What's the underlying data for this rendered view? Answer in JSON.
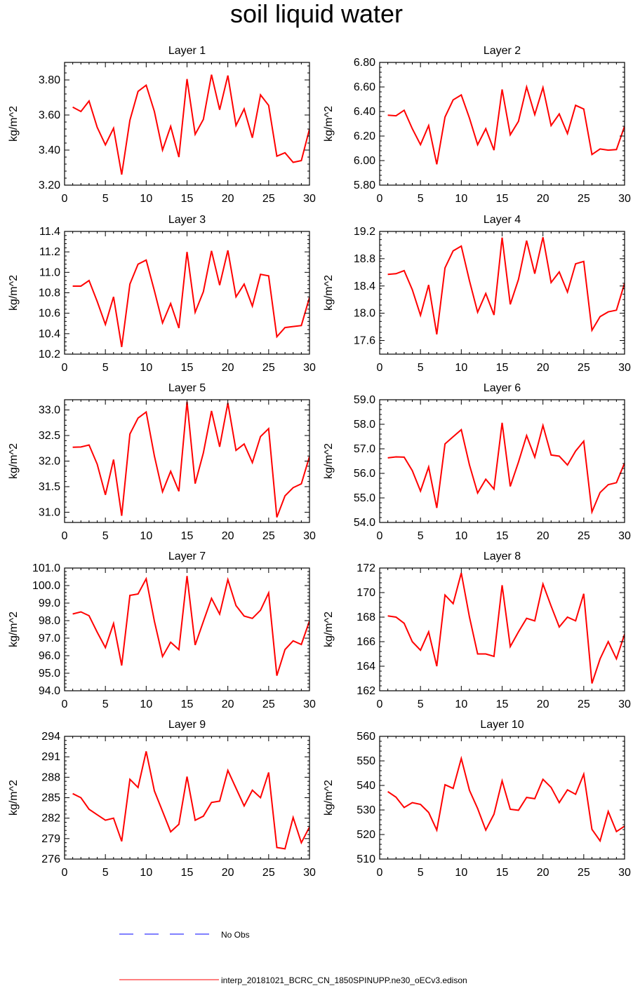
{
  "title": "soil liquid water",
  "colors": {
    "series": "#ff0000",
    "obs": "#0000ff",
    "axis": "#000000"
  },
  "legend": {
    "obs_label": "No Obs",
    "model_label": "interp_20181021_BCRC_CN_1850SPINUPP.ne30_oECv3.edison"
  },
  "chart_data": [
    {
      "type": "line",
      "title": "Layer 1",
      "ylabel": "kg/m^2",
      "xlim": [
        0,
        30
      ],
      "ylim": [
        3.2,
        3.9
      ],
      "xticks": [
        0,
        5,
        10,
        15,
        20,
        25,
        30
      ],
      "yticks": [
        "3.20",
        "3.40",
        "3.60",
        "3.80"
      ],
      "x": [
        1,
        2,
        3,
        4,
        5,
        6,
        7,
        8,
        9,
        10,
        11,
        12,
        13,
        14,
        15,
        16,
        17,
        18,
        19,
        20,
        21,
        22,
        23,
        24,
        25,
        26,
        27,
        28,
        29,
        30
      ],
      "series": [
        {
          "values": [
            3.645,
            3.62,
            3.68,
            3.53,
            3.43,
            3.525,
            3.26,
            3.57,
            3.735,
            3.77,
            3.62,
            3.4,
            3.535,
            3.36,
            3.805,
            3.49,
            3.575,
            3.83,
            3.63,
            3.825,
            3.54,
            3.635,
            3.47,
            3.715,
            3.655,
            3.365,
            3.385,
            3.33,
            3.34,
            3.52
          ]
        }
      ]
    },
    {
      "type": "line",
      "title": "Layer 2",
      "ylabel": "kg/m^2",
      "xlim": [
        0,
        30
      ],
      "ylim": [
        5.8,
        6.8
      ],
      "xticks": [
        0,
        5,
        10,
        15,
        20,
        25,
        30
      ],
      "yticks": [
        "5.80",
        "6.00",
        "6.20",
        "6.40",
        "6.60",
        "6.80"
      ],
      "x": [
        1,
        2,
        3,
        4,
        5,
        6,
        7,
        8,
        9,
        10,
        11,
        12,
        13,
        14,
        15,
        16,
        17,
        18,
        19,
        20,
        21,
        22,
        23,
        24,
        25,
        26,
        27,
        28,
        29,
        30
      ],
      "series": [
        {
          "values": [
            6.37,
            6.365,
            6.41,
            6.26,
            6.13,
            6.285,
            5.97,
            6.355,
            6.495,
            6.535,
            6.345,
            6.13,
            6.26,
            6.085,
            6.58,
            6.21,
            6.32,
            6.6,
            6.375,
            6.595,
            6.285,
            6.38,
            6.22,
            6.45,
            6.42,
            6.05,
            6.095,
            6.085,
            6.09,
            6.28
          ]
        }
      ]
    },
    {
      "type": "line",
      "title": "Layer 3",
      "ylabel": "kg/m^2",
      "xlim": [
        0,
        30
      ],
      "ylim": [
        10.2,
        11.4
      ],
      "xticks": [
        0,
        5,
        10,
        15,
        20,
        25,
        30
      ],
      "yticks": [
        "10.2",
        "10.4",
        "10.6",
        "10.8",
        "11.0",
        "11.2",
        "11.4"
      ],
      "x": [
        1,
        2,
        3,
        4,
        5,
        6,
        7,
        8,
        9,
        10,
        11,
        12,
        13,
        14,
        15,
        16,
        17,
        18,
        19,
        20,
        21,
        22,
        23,
        24,
        25,
        26,
        27,
        28,
        29,
        30
      ],
      "series": [
        {
          "values": [
            10.865,
            10.865,
            10.92,
            10.715,
            10.49,
            10.76,
            10.27,
            10.885,
            11.08,
            11.12,
            10.82,
            10.505,
            10.695,
            10.455,
            11.2,
            10.61,
            10.81,
            11.21,
            10.875,
            11.215,
            10.76,
            10.885,
            10.67,
            10.98,
            10.965,
            10.37,
            10.46,
            10.47,
            10.48,
            10.755
          ]
        }
      ]
    },
    {
      "type": "line",
      "title": "Layer 4",
      "ylabel": "kg/m^2",
      "xlim": [
        0,
        30
      ],
      "ylim": [
        17.4,
        19.2
      ],
      "xticks": [
        0,
        5,
        10,
        15,
        20,
        25,
        30
      ],
      "yticks": [
        "17.6",
        "18.0",
        "18.4",
        "18.8",
        "19.2"
      ],
      "x": [
        1,
        2,
        3,
        4,
        5,
        6,
        7,
        8,
        9,
        10,
        11,
        12,
        13,
        14,
        15,
        16,
        17,
        18,
        19,
        20,
        21,
        22,
        23,
        24,
        25,
        26,
        27,
        28,
        29,
        30
      ],
      "series": [
        {
          "values": [
            18.57,
            18.58,
            18.625,
            18.345,
            17.97,
            18.415,
            17.69,
            18.665,
            18.915,
            18.985,
            18.475,
            18.015,
            18.29,
            17.975,
            19.11,
            18.13,
            18.495,
            19.065,
            18.58,
            19.115,
            18.45,
            18.605,
            18.31,
            18.725,
            18.76,
            17.75,
            17.95,
            18.02,
            18.045,
            18.44
          ]
        }
      ]
    },
    {
      "type": "line",
      "title": "Layer 5",
      "ylabel": "kg/m^2",
      "xlim": [
        0,
        30
      ],
      "ylim": [
        30.8,
        33.2
      ],
      "xticks": [
        0,
        5,
        10,
        15,
        20,
        25,
        30
      ],
      "yticks": [
        "31.0",
        "31.5",
        "32.0",
        "32.5",
        "33.0"
      ],
      "x": [
        1,
        2,
        3,
        4,
        5,
        6,
        7,
        8,
        9,
        10,
        11,
        12,
        13,
        14,
        15,
        16,
        17,
        18,
        19,
        20,
        21,
        22,
        23,
        24,
        25,
        26,
        27,
        28,
        29,
        30
      ],
      "series": [
        {
          "values": [
            32.27,
            32.275,
            32.315,
            31.94,
            31.34,
            32.03,
            30.93,
            32.53,
            32.84,
            32.96,
            32.1,
            31.4,
            31.8,
            31.41,
            33.16,
            31.56,
            32.16,
            32.98,
            32.28,
            33.135,
            32.21,
            32.335,
            31.97,
            32.48,
            32.635,
            30.9,
            31.32,
            31.48,
            31.555,
            32.09
          ]
        }
      ]
    },
    {
      "type": "line",
      "title": "Layer 6",
      "ylabel": "kg/m^2",
      "xlim": [
        0,
        30
      ],
      "ylim": [
        54.0,
        59.0
      ],
      "xticks": [
        0,
        5,
        10,
        15,
        20,
        25,
        30
      ],
      "yticks": [
        "54.0",
        "55.0",
        "56.0",
        "57.0",
        "58.0",
        "59.0"
      ],
      "x": [
        1,
        2,
        3,
        4,
        5,
        6,
        7,
        8,
        9,
        10,
        11,
        12,
        13,
        14,
        15,
        16,
        17,
        18,
        19,
        20,
        21,
        22,
        23,
        24,
        25,
        26,
        27,
        28,
        29,
        30
      ],
      "series": [
        {
          "values": [
            56.63,
            56.67,
            56.66,
            56.11,
            55.28,
            56.26,
            54.59,
            57.2,
            57.49,
            57.78,
            56.34,
            55.2,
            55.76,
            55.36,
            58.06,
            55.47,
            56.46,
            57.54,
            56.66,
            57.95,
            56.75,
            56.7,
            56.34,
            56.91,
            57.31,
            54.43,
            55.22,
            55.54,
            55.62,
            56.42
          ]
        }
      ]
    },
    {
      "type": "line",
      "title": "Layer 7",
      "ylabel": "kg/m^2",
      "xlim": [
        0,
        30
      ],
      "ylim": [
        94.0,
        101.0
      ],
      "xticks": [
        0,
        5,
        10,
        15,
        20,
        25,
        30
      ],
      "yticks": [
        "94.0",
        "95.0",
        "96.0",
        "97.0",
        "98.0",
        "99.0",
        "100.0",
        "101.0"
      ],
      "x": [
        1,
        2,
        3,
        4,
        5,
        6,
        7,
        8,
        9,
        10,
        11,
        12,
        13,
        14,
        15,
        16,
        17,
        18,
        19,
        20,
        21,
        22,
        23,
        24,
        25,
        26,
        27,
        28,
        29,
        30
      ],
      "series": [
        {
          "values": [
            98.38,
            98.5,
            98.28,
            97.34,
            96.46,
            97.84,
            95.44,
            99.44,
            99.52,
            100.39,
            97.97,
            95.95,
            96.77,
            96.35,
            100.55,
            96.61,
            97.95,
            99.27,
            98.37,
            100.34,
            98.86,
            98.26,
            98.13,
            98.59,
            99.58,
            94.86,
            96.35,
            96.85,
            96.64,
            97.98
          ]
        }
      ]
    },
    {
      "type": "line",
      "title": "Layer 8",
      "ylabel": "kg/m^2",
      "xlim": [
        0,
        30
      ],
      "ylim": [
        162,
        172
      ],
      "xticks": [
        0,
        5,
        10,
        15,
        20,
        25,
        30
      ],
      "yticks": [
        "162",
        "164",
        "166",
        "168",
        "170",
        "172"
      ],
      "x": [
        1,
        2,
        3,
        4,
        5,
        6,
        7,
        8,
        9,
        10,
        11,
        12,
        13,
        14,
        15,
        16,
        17,
        18,
        19,
        20,
        21,
        22,
        23,
        24,
        25,
        26,
        27,
        28,
        29,
        30
      ],
      "series": [
        {
          "values": [
            168.1,
            168.0,
            167.5,
            166.0,
            165.3,
            166.8,
            164.0,
            169.8,
            169.1,
            171.6,
            168.0,
            165.0,
            165.0,
            164.8,
            170.6,
            165.6,
            166.8,
            167.9,
            167.7,
            170.7,
            168.9,
            167.2,
            168.0,
            167.7,
            169.9,
            162.6,
            164.6,
            166.0,
            164.6,
            166.6
          ]
        }
      ]
    },
    {
      "type": "line",
      "title": "Layer 9",
      "ylabel": "kg/m^2",
      "xlim": [
        0,
        30
      ],
      "ylim": [
        276,
        294
      ],
      "xticks": [
        0,
        5,
        10,
        15,
        20,
        25,
        30
      ],
      "yticks": [
        "276",
        "279",
        "282",
        "285",
        "288",
        "291",
        "294"
      ],
      "x": [
        1,
        2,
        3,
        4,
        5,
        6,
        7,
        8,
        9,
        10,
        11,
        12,
        13,
        14,
        15,
        16,
        17,
        18,
        19,
        20,
        21,
        22,
        23,
        24,
        25,
        26,
        27,
        28,
        29,
        30
      ],
      "series": [
        {
          "values": [
            285.6,
            285.0,
            283.3,
            282.5,
            281.7,
            282.0,
            278.6,
            287.7,
            286.5,
            291.8,
            286.0,
            283.0,
            280.0,
            281.1,
            288.1,
            281.7,
            282.3,
            284.3,
            284.5,
            289.0,
            286.4,
            283.8,
            286.1,
            285.0,
            288.7,
            277.7,
            277.5,
            282.1,
            278.4,
            280.7
          ]
        }
      ]
    },
    {
      "type": "line",
      "title": "Layer 10",
      "ylabel": "kg/m^2",
      "xlim": [
        0,
        30
      ],
      "ylim": [
        510,
        560
      ],
      "xticks": [
        0,
        5,
        10,
        15,
        20,
        25,
        30
      ],
      "yticks": [
        "510",
        "520",
        "530",
        "540",
        "550",
        "560"
      ],
      "x": [
        1,
        2,
        3,
        4,
        5,
        6,
        7,
        8,
        9,
        10,
        11,
        12,
        13,
        14,
        15,
        16,
        17,
        18,
        19,
        20,
        21,
        22,
        23,
        24,
        25,
        26,
        27,
        28,
        29,
        30
      ],
      "series": [
        {
          "values": [
            537.5,
            535.2,
            531.0,
            533.0,
            532.3,
            529.0,
            521.8,
            540.3,
            538.8,
            551.0,
            538.0,
            530.6,
            521.8,
            528.3,
            541.9,
            530.3,
            529.9,
            535.1,
            534.6,
            542.5,
            539.2,
            533.0,
            538.2,
            536.4,
            544.6,
            522.1,
            517.4,
            529.4,
            521.2,
            523.4
          ]
        }
      ]
    }
  ]
}
